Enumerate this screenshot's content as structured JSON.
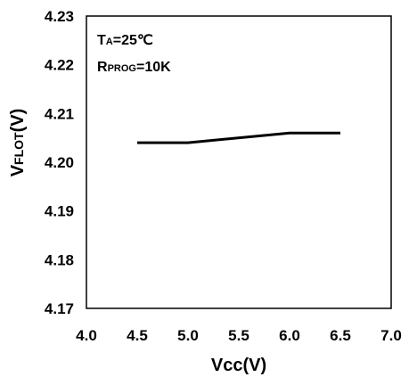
{
  "chart_data": {
    "type": "line",
    "title": "",
    "xlabel": "Vcc(V)",
    "ylabel_main": "V",
    "ylabel_sub": "FLOT",
    "ylabel_unit": "(V)",
    "xlim": [
      4.0,
      7.0
    ],
    "ylim": [
      4.17,
      4.23
    ],
    "x_ticks": [
      "4.0",
      "4.5",
      "5.0",
      "5.5",
      "6.0",
      "6.5",
      "7.0"
    ],
    "y_ticks": [
      "4.17",
      "4.18",
      "4.19",
      "4.20",
      "4.21",
      "4.22",
      "4.23"
    ],
    "grid": false,
    "series": [
      {
        "x": [
          4.5,
          5.0,
          6.0,
          6.5
        ],
        "y": [
          4.204,
          4.204,
          4.206,
          4.206
        ],
        "color": "#000000"
      }
    ],
    "annotations": {
      "ta_main": "T",
      "ta_sub": "A",
      "ta_value": "=25℃",
      "rprog_main": "R",
      "rprog_sub": "PROG",
      "rprog_value": "=10K"
    }
  }
}
